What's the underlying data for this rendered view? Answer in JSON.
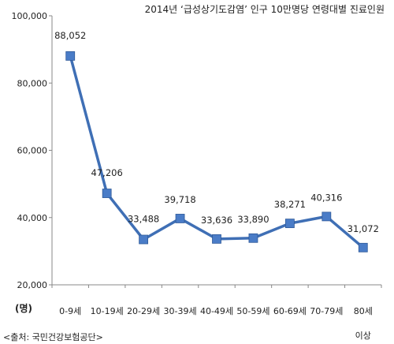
{
  "chart_data": {
    "type": "line",
    "title": "2014년 ‘급성상기도감염’ 인구 10만명당 연령대별 진료인원",
    "ylabel": "(명)",
    "xlabel": "",
    "categories": [
      "0-9세",
      "10-19세",
      "20-29세",
      "30-39세",
      "40-49세",
      "50-59세",
      "60-69세",
      "70-79세",
      "80세 이상"
    ],
    "values": [
      88052,
      47206,
      33488,
      39718,
      33636,
      33890,
      38271,
      40316,
      31072
    ],
    "value_labels": [
      "88,052",
      "47,206",
      "33,488",
      "39,718",
      "33,636",
      "33,890",
      "38,271",
      "40,316",
      "31,072"
    ],
    "ylim": [
      20000,
      100000
    ],
    "yticks": [
      20000,
      40000,
      60000,
      80000,
      100000
    ],
    "ytick_labels": [
      "20,000",
      "40,000",
      "60,000",
      "80,000",
      "100,000"
    ],
    "grid": false,
    "source": "<출처: 국민건강보험공단>",
    "colors": {
      "line": "#3F6FB5",
      "marker": "#4A7CC7",
      "axis": "#888888"
    }
  }
}
